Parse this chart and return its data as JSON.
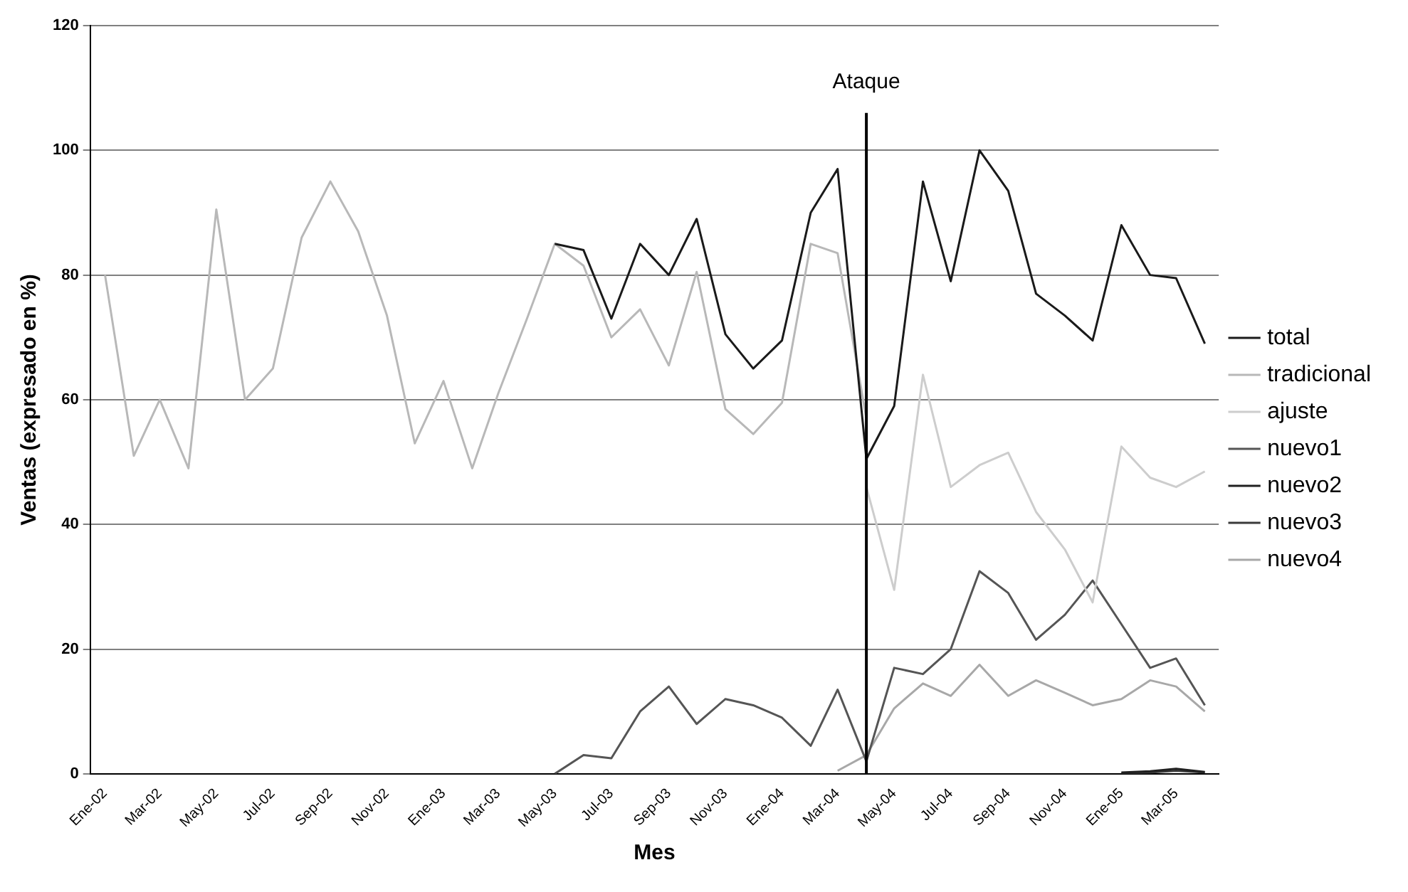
{
  "chart_data": {
    "type": "line",
    "xlabel": "Mes",
    "ylabel": "Ventas (expresado en %)",
    "x": [
      "2002-01",
      "2002-02",
      "2002-03",
      "2002-04",
      "2002-05",
      "2002-06",
      "2002-07",
      "2002-08",
      "2002-09",
      "2002-10",
      "2002-11",
      "2002-12",
      "2003-01",
      "2003-02",
      "2003-03",
      "2003-04",
      "2003-05",
      "2003-06",
      "2003-07",
      "2003-08",
      "2003-09",
      "2003-10",
      "2003-11",
      "2003-12",
      "2004-01",
      "2004-02",
      "2004-03",
      "2004-04",
      "2004-05",
      "2004-06",
      "2004-07",
      "2004-08",
      "2004-09",
      "2004-10",
      "2004-11",
      "2004-12",
      "2005-01",
      "2005-02",
      "2005-03",
      "2005-04"
    ],
    "series": [
      {
        "name": "total",
        "color": "#1a1a1a",
        "values": [
          null,
          null,
          null,
          null,
          null,
          null,
          null,
          null,
          null,
          null,
          null,
          null,
          null,
          null,
          null,
          null,
          85,
          84,
          73,
          85,
          80,
          89,
          70.5,
          65,
          69.5,
          90,
          97,
          50.5,
          59,
          95,
          79,
          100,
          93.5,
          77,
          73.5,
          69.5,
          88,
          80,
          79.5,
          69
        ]
      },
      {
        "name": "tradicional",
        "color": "#b8b8b8",
        "values": [
          80,
          51,
          60,
          49,
          90.5,
          60,
          65,
          86,
          95,
          87,
          73.5,
          53,
          63,
          49,
          61,
          73,
          85,
          81.5,
          70,
          74.5,
          65.5,
          80.5,
          58.5,
          54.5,
          59.5,
          85,
          83.5,
          57,
          null,
          null,
          null,
          null,
          null,
          null,
          null,
          null,
          null,
          null,
          null,
          null
        ]
      },
      {
        "name": "ajuste",
        "color": "#cdcdcd",
        "values": [
          null,
          null,
          null,
          null,
          null,
          null,
          null,
          null,
          null,
          null,
          null,
          null,
          null,
          null,
          null,
          null,
          null,
          null,
          null,
          null,
          null,
          null,
          null,
          null,
          null,
          null,
          null,
          46,
          29.5,
          64,
          46,
          49.5,
          51.5,
          42,
          36,
          27.5,
          52.5,
          47.5,
          46,
          48.5
        ]
      },
      {
        "name": "nuevo1",
        "color": "#555555",
        "values": [
          null,
          null,
          null,
          null,
          null,
          null,
          null,
          null,
          null,
          null,
          null,
          null,
          null,
          null,
          null,
          null,
          0,
          3,
          2.5,
          10,
          14,
          8,
          12,
          11,
          9,
          4.5,
          13.5,
          2,
          17,
          16,
          20,
          32.5,
          29,
          21.5,
          25.5,
          31,
          24,
          17,
          18.5,
          11
        ]
      },
      {
        "name": "nuevo2",
        "color": "#202020",
        "values": [
          null,
          null,
          null,
          null,
          null,
          null,
          null,
          null,
          null,
          null,
          null,
          null,
          null,
          null,
          null,
          null,
          null,
          null,
          null,
          null,
          null,
          null,
          null,
          null,
          null,
          null,
          null,
          null,
          null,
          null,
          null,
          null,
          null,
          null,
          null,
          null,
          0.2,
          0.4,
          0.8,
          0.3
        ]
      },
      {
        "name": "nuevo3",
        "color": "#3a3a3a",
        "values": [
          null,
          null,
          null,
          null,
          null,
          null,
          null,
          null,
          null,
          null,
          null,
          null,
          null,
          null,
          null,
          null,
          null,
          null,
          null,
          null,
          null,
          null,
          null,
          null,
          null,
          null,
          null,
          null,
          null,
          null,
          null,
          null,
          null,
          null,
          null,
          null,
          0.1,
          0.2,
          0.5,
          0.2
        ]
      },
      {
        "name": "nuevo4",
        "color": "#a8a8a8",
        "values": [
          null,
          null,
          null,
          null,
          null,
          null,
          null,
          null,
          null,
          null,
          null,
          null,
          null,
          null,
          null,
          null,
          null,
          null,
          null,
          null,
          null,
          null,
          null,
          null,
          null,
          null,
          0.5,
          3,
          10.5,
          14.5,
          12.5,
          17.5,
          12.5,
          15,
          13,
          11,
          12,
          15,
          14,
          10
        ]
      }
    ],
    "xlim": [
      "2001-12-16",
      "2005-04-16"
    ],
    "xticks": [
      {
        "value": "2002-01",
        "label": "Ene-02"
      },
      {
        "value": "2002-03",
        "label": "Mar-02"
      },
      {
        "value": "2002-05",
        "label": "May-02"
      },
      {
        "value": "2002-07",
        "label": "Jul-02"
      },
      {
        "value": "2002-09",
        "label": "Sep-02"
      },
      {
        "value": "2002-11",
        "label": "Nov-02"
      },
      {
        "value": "2003-01",
        "label": "Ene-03"
      },
      {
        "value": "2003-03",
        "label": "Mar-03"
      },
      {
        "value": "2003-05",
        "label": "May-03"
      },
      {
        "value": "2003-07",
        "label": "Jul-03"
      },
      {
        "value": "2003-09",
        "label": "Sep-03"
      },
      {
        "value": "2003-11",
        "label": "Nov-03"
      },
      {
        "value": "2004-01",
        "label": "Ene-04"
      },
      {
        "value": "2004-03",
        "label": "Mar-04"
      },
      {
        "value": "2004-05",
        "label": "May-04"
      },
      {
        "value": "2004-07",
        "label": "Jul-04"
      },
      {
        "value": "2004-09",
        "label": "Sep-04"
      },
      {
        "value": "2004-11",
        "label": "Nov-04"
      },
      {
        "value": "2005-01",
        "label": "Ene-05"
      },
      {
        "value": "2005-03",
        "label": "Mar-05"
      }
    ],
    "ylim": [
      0,
      120
    ],
    "yticks": [
      0,
      20,
      40,
      60,
      80,
      100,
      120
    ],
    "grid": "y",
    "legend": "right",
    "marker": "none",
    "line_style": "solid",
    "ref_lines": [
      {
        "axis": "x",
        "value": "2004-04",
        "label": "Ataque",
        "color": "#000000"
      }
    ]
  }
}
